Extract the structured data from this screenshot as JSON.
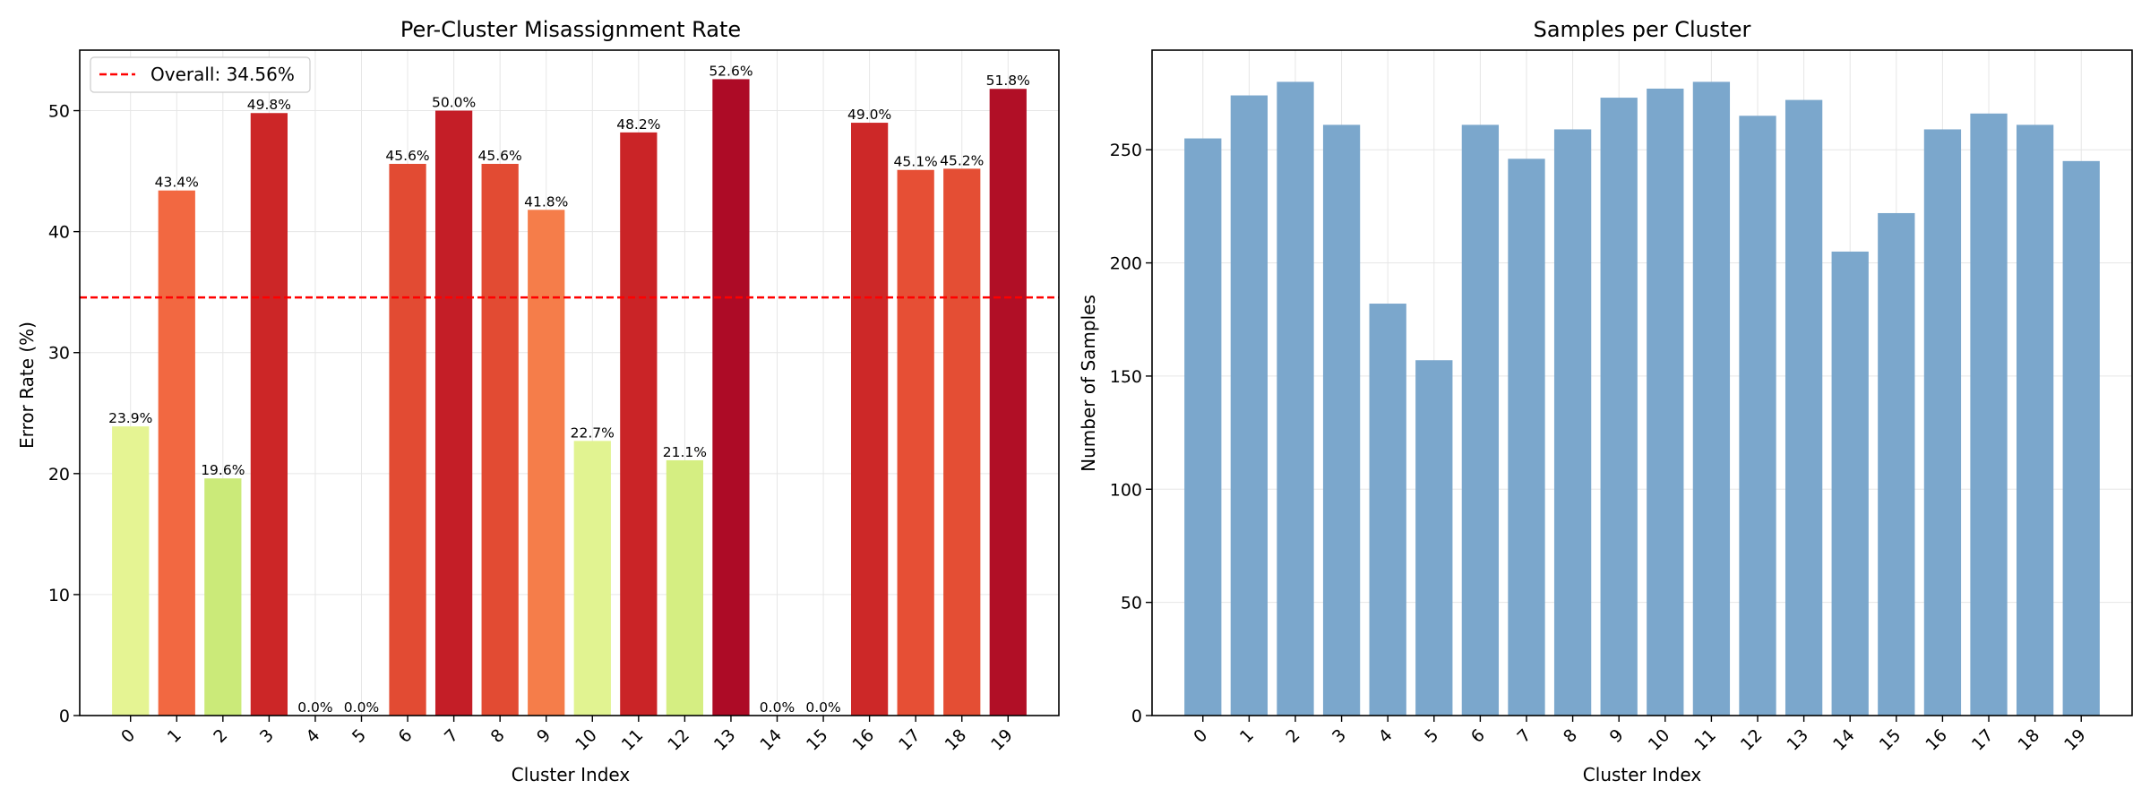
{
  "chart_data": [
    {
      "type": "bar",
      "title": "Per-Cluster Misassignment Rate",
      "xlabel": "Cluster Index",
      "ylabel": "Error Rate (%)",
      "categories": [
        "0",
        "1",
        "2",
        "3",
        "4",
        "5",
        "6",
        "7",
        "8",
        "9",
        "10",
        "11",
        "12",
        "13",
        "14",
        "15",
        "16",
        "17",
        "18",
        "19"
      ],
      "values": [
        23.9,
        43.4,
        19.6,
        49.8,
        0.0,
        0.0,
        45.6,
        50.0,
        45.6,
        41.8,
        22.7,
        48.2,
        21.1,
        52.6,
        0.0,
        0.0,
        49.0,
        45.1,
        45.2,
        51.8
      ],
      "data_labels": [
        "23.9%",
        "43.4%",
        "19.6%",
        "49.8%",
        "0.0%",
        "0.0%",
        "45.6%",
        "50.0%",
        "45.6%",
        "41.8%",
        "22.7%",
        "48.2%",
        "21.1%",
        "52.6%",
        "0.0%",
        "0.0%",
        "49.0%",
        "45.1%",
        "45.2%",
        "51.8%"
      ],
      "colors": [
        "#e5f493",
        "#f26841",
        "#cbea79",
        "#cc2627",
        "#feffbf",
        "#feffbf",
        "#e24b33",
        "#c41e27",
        "#e24b33",
        "#f57d4a",
        "#e1f391",
        "#ca2427",
        "#d5ee82",
        "#ad0b26",
        "#feffbf",
        "#feffbf",
        "#cd2828",
        "#e64f35",
        "#e44e34",
        "#b10f26"
      ],
      "ylim": [
        0,
        55
      ],
      "yticks": [
        0,
        10,
        20,
        30,
        40,
        50
      ],
      "grid": true,
      "reference_line": {
        "value": 34.56,
        "color": "#ff0000",
        "style": "dashed"
      },
      "legend": {
        "position": "top-left",
        "entries": [
          "Overall: 34.56%"
        ]
      }
    },
    {
      "type": "bar",
      "title": "Samples per Cluster",
      "xlabel": "Cluster Index",
      "ylabel": "Number of Samples",
      "categories": [
        "0",
        "1",
        "2",
        "3",
        "4",
        "5",
        "6",
        "7",
        "8",
        "9",
        "10",
        "11",
        "12",
        "13",
        "14",
        "15",
        "16",
        "17",
        "18",
        "19"
      ],
      "values": [
        255,
        274,
        280,
        261,
        182,
        157,
        261,
        246,
        259,
        273,
        277,
        280,
        265,
        272,
        205,
        222,
        259,
        266,
        261,
        245
      ],
      "color": "#7ba7cc",
      "ylim": [
        0,
        294
      ],
      "yticks": [
        0,
        50,
        100,
        150,
        200,
        250
      ],
      "grid": true
    }
  ]
}
